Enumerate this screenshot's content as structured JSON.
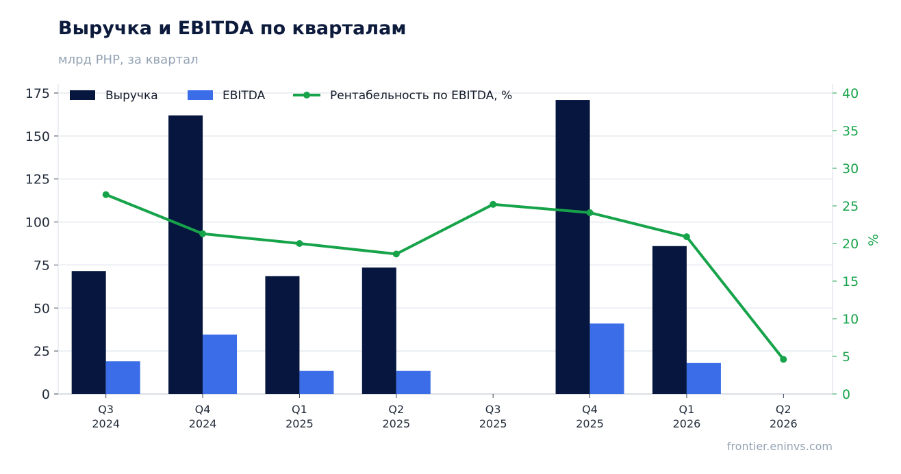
{
  "title": "Выручка и EBITDA по кварталам",
  "subtitle": "млрд PHP, за квартал",
  "source": "frontier.eninvs.com",
  "colors": {
    "revenue": "#06163f",
    "ebitda": "#3b6de8",
    "margin": "#16a34a",
    "grid": "#e5e9ef"
  },
  "chart_data": {
    "type": "bar",
    "categories": [
      [
        "Q3",
        "2024"
      ],
      [
        "Q4",
        "2024"
      ],
      [
        "Q1",
        "2025"
      ],
      [
        "Q2",
        "2025"
      ],
      [
        "Q3",
        "2025"
      ],
      [
        "Q4",
        "2025"
      ],
      [
        "Q1",
        "2026"
      ],
      [
        "Q2",
        "2026"
      ]
    ],
    "series": [
      {
        "name": "Выручка",
        "type": "bar",
        "axis": "left",
        "values": [
          71.5,
          162,
          68.5,
          73.5,
          null,
          171,
          86,
          null
        ]
      },
      {
        "name": "EBITDA",
        "type": "bar",
        "axis": "left",
        "values": [
          19,
          34.5,
          13.5,
          13.5,
          null,
          41,
          18,
          null
        ]
      },
      {
        "name": "Рентабельность по EBITDA, %",
        "type": "line",
        "axis": "right",
        "values": [
          26.5,
          21.3,
          20.0,
          18.6,
          25.2,
          24.1,
          20.9,
          4.6
        ]
      }
    ],
    "y_left": {
      "min": 0,
      "max": 175,
      "ticks": [
        0,
        25,
        50,
        75,
        100,
        125,
        150,
        175
      ]
    },
    "y_right": {
      "label": "%",
      "min": 0,
      "max": 40,
      "ticks": [
        0,
        5,
        10,
        15,
        20,
        25,
        30,
        35,
        40
      ]
    },
    "grid": true,
    "legend_position": "top-left"
  }
}
